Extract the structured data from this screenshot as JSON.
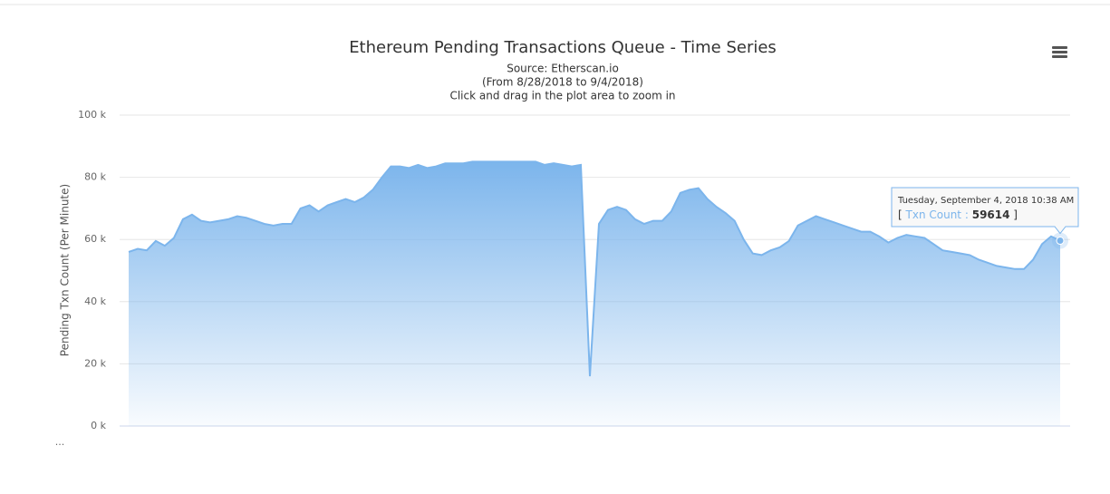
{
  "chart_data": {
    "type": "area",
    "title": "Ethereum Pending Transactions Queue - Time Series",
    "subtitle": [
      "Source: Etherscan.io",
      "(From 8/28/2018 to 9/4/2018)",
      "Click and drag in the plot area to zoom in"
    ],
    "y_label": "Pending Txn Count (Per Minute)",
    "ylim": [
      0,
      100000
    ],
    "yticks": [
      {
        "value": 0,
        "label": "0 k"
      },
      {
        "value": 20000,
        "label": "20 k"
      },
      {
        "value": 40000,
        "label": "40 k"
      },
      {
        "value": 60000,
        "label": "60 k"
      },
      {
        "value": 80000,
        "label": "80 k"
      },
      {
        "value": 100000,
        "label": "100 k"
      }
    ],
    "grid": true,
    "series": [
      {
        "name": "Txn Count",
        "color": "#7cb5ec",
        "values": [
          56000,
          57000,
          56500,
          59500,
          58000,
          60500,
          66500,
          68000,
          66000,
          65500,
          66000,
          66500,
          67500,
          67000,
          66000,
          65000,
          64500,
          65000,
          65000,
          70000,
          71000,
          69000,
          71000,
          72000,
          73000,
          72000,
          73500,
          76000,
          80000,
          83500,
          83500,
          83000,
          84000,
          83000,
          83500,
          84500,
          84500,
          84500,
          85000,
          85000,
          85000,
          85000,
          85000,
          85000,
          85000,
          85000,
          84000,
          84500,
          84000,
          83500,
          84000,
          16000,
          65000,
          69500,
          70500,
          69500,
          66500,
          65000,
          66000,
          66000,
          69000,
          75000,
          76000,
          76500,
          73000,
          70500,
          68500,
          66000,
          60000,
          55500,
          55000,
          56500,
          57500,
          59500,
          64500,
          66000,
          67500,
          66500,
          65500,
          64500,
          63500,
          62500,
          62500,
          61000,
          59000,
          60500,
          61500,
          61000,
          60500,
          58500,
          56500,
          56000,
          55500,
          55000,
          53500,
          52500,
          51500,
          51000,
          50500,
          50500,
          53500,
          58500,
          61000,
          59614
        ]
      }
    ],
    "tooltip": {
      "header": "Tuesday, September 4, 2018 10:38 AM",
      "open": "[",
      "separator": ":",
      "close": "]"
    },
    "footer": "..."
  }
}
